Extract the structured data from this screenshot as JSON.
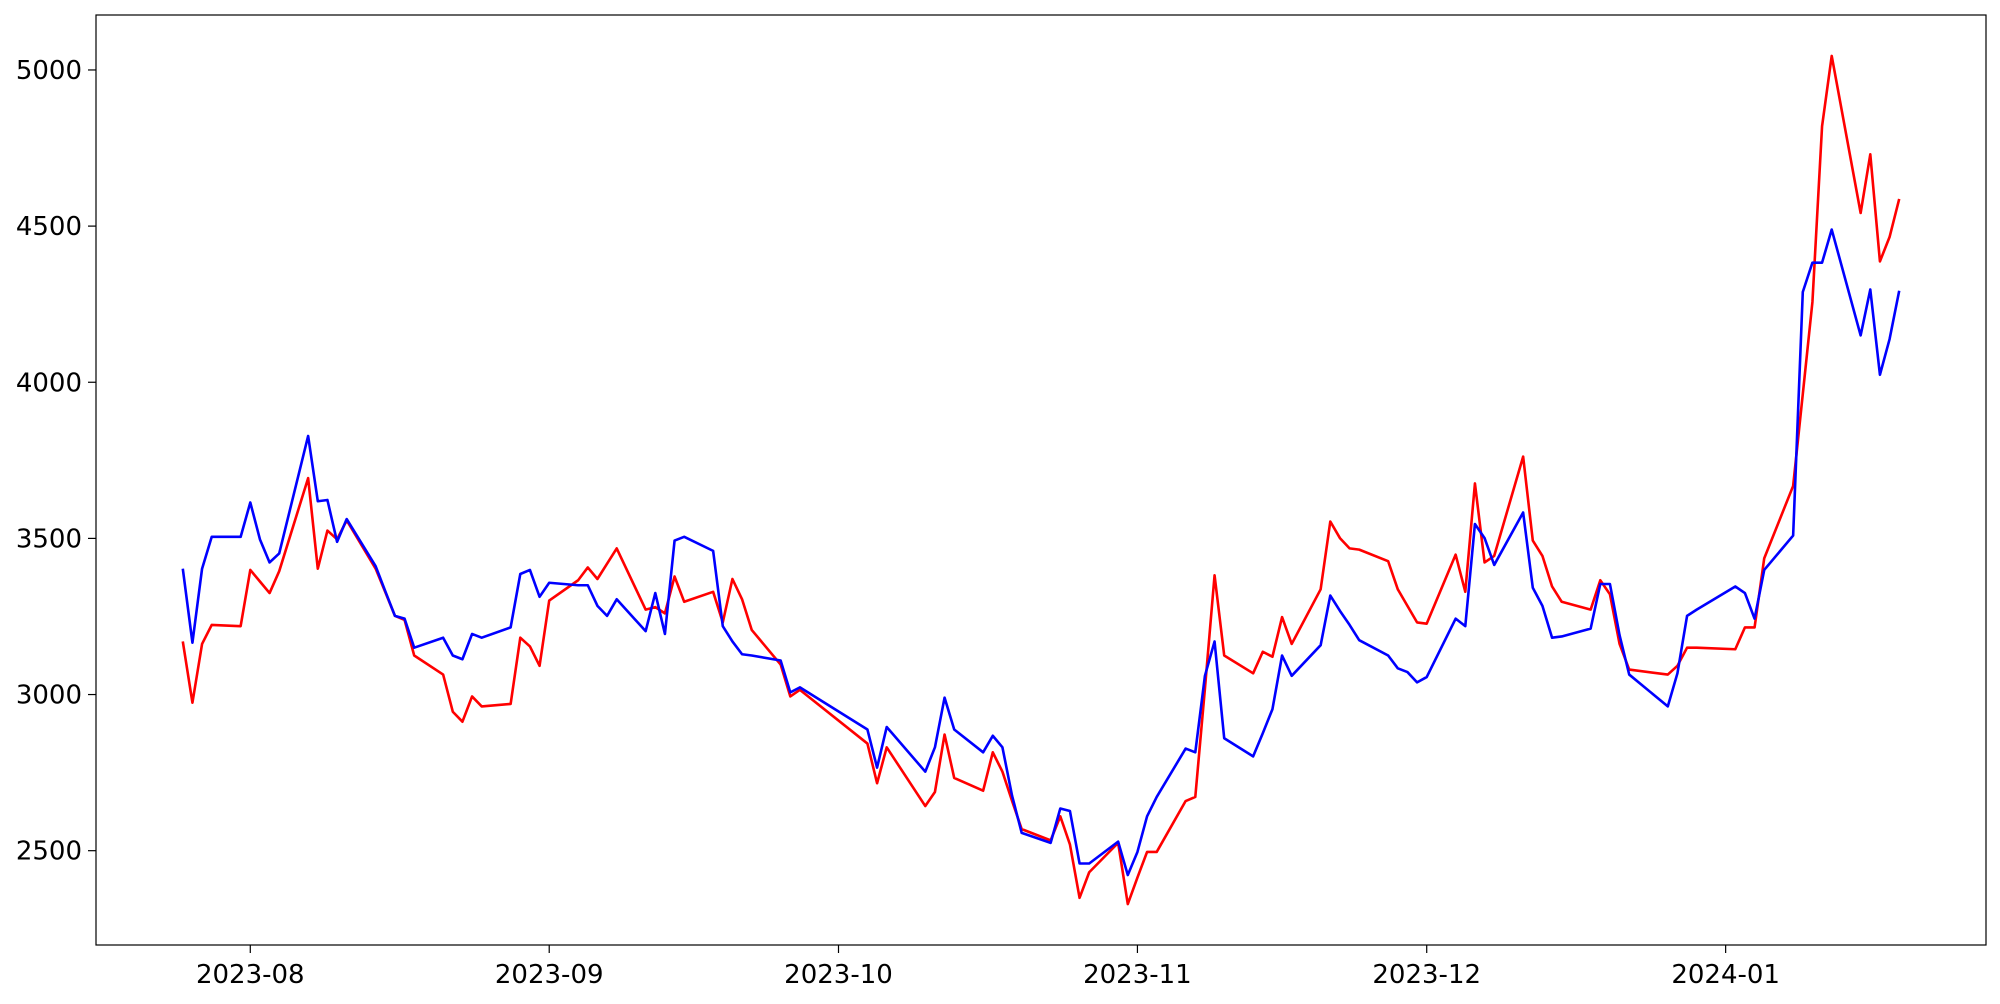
{
  "chart_data": {
    "type": "line",
    "x": [
      "2023-07-25",
      "2023-07-26",
      "2023-07-27",
      "2023-07-28",
      "2023-07-31",
      "2023-08-01",
      "2023-08-02",
      "2023-08-03",
      "2023-08-04",
      "2023-08-07",
      "2023-08-08",
      "2023-08-09",
      "2023-08-10",
      "2023-08-11",
      "2023-08-14",
      "2023-08-15",
      "2023-08-16",
      "2023-08-17",
      "2023-08-18",
      "2023-08-21",
      "2023-08-22",
      "2023-08-23",
      "2023-08-24",
      "2023-08-25",
      "2023-08-28",
      "2023-08-29",
      "2023-08-30",
      "2023-08-31",
      "2023-09-01",
      "2023-09-04",
      "2023-09-05",
      "2023-09-06",
      "2023-09-07",
      "2023-09-08",
      "2023-09-11",
      "2023-09-12",
      "2023-09-13",
      "2023-09-14",
      "2023-09-15",
      "2023-09-18",
      "2023-09-19",
      "2023-09-20",
      "2023-09-21",
      "2023-09-22",
      "2023-09-25",
      "2023-09-26",
      "2023-09-27",
      "2023-10-04",
      "2023-10-05",
      "2023-10-06",
      "2023-10-10",
      "2023-10-11",
      "2023-10-12",
      "2023-10-13",
      "2023-10-16",
      "2023-10-17",
      "2023-10-18",
      "2023-10-19",
      "2023-10-20",
      "2023-10-23",
      "2023-10-24",
      "2023-10-25",
      "2023-10-26",
      "2023-10-27",
      "2023-10-30",
      "2023-10-31",
      "2023-11-01",
      "2023-11-02",
      "2023-11-03",
      "2023-11-06",
      "2023-11-07",
      "2023-11-08",
      "2023-11-09",
      "2023-11-10",
      "2023-11-13",
      "2023-11-14",
      "2023-11-15",
      "2023-11-16",
      "2023-11-17",
      "2023-11-20",
      "2023-11-21",
      "2023-11-22",
      "2023-11-23",
      "2023-11-24",
      "2023-11-27",
      "2023-11-28",
      "2023-11-29",
      "2023-11-30",
      "2023-12-01",
      "2023-12-04",
      "2023-12-05",
      "2023-12-06",
      "2023-12-07",
      "2023-12-08",
      "2023-12-11",
      "2023-12-12",
      "2023-12-13",
      "2023-12-14",
      "2023-12-15",
      "2023-12-18",
      "2023-12-19",
      "2023-12-20",
      "2023-12-21",
      "2023-12-22",
      "2023-12-26",
      "2023-12-27",
      "2023-12-28",
      "2023-12-29",
      "2024-01-02",
      "2024-01-03",
      "2024-01-04",
      "2024-01-05",
      "2024-01-08",
      "2024-01-09",
      "2024-01-10",
      "2024-01-11",
      "2024-01-12",
      "2024-01-15",
      "2024-01-16",
      "2024-01-17",
      "2024-01-18",
      "2024-01-19"
    ],
    "series": [
      {
        "color": "#ff0000",
        "values": [
          3170,
          2974,
          3162,
          3223,
          3219,
          3399,
          3362,
          3325,
          3395,
          3693,
          3403,
          3525,
          3497,
          3558,
          3403,
          3328,
          3252,
          3239,
          3125,
          3064,
          2945,
          2913,
          2994,
          2962,
          2970,
          3182,
          3154,
          3092,
          3301,
          3366,
          3407,
          3370,
          3419,
          3468,
          3272,
          3280,
          3260,
          3378,
          3297,
          3329,
          3231,
          3370,
          3305,
          3207,
          3096,
          2994,
          3015,
          2843,
          2716,
          2831,
          2643,
          2688,
          2872,
          2733,
          2692,
          2815,
          2753,
          2659,
          2569,
          2533,
          2610,
          2520,
          2349,
          2431,
          2525,
          2329,
          2414,
          2496,
          2496,
          2659,
          2672,
          3019,
          3382,
          3125,
          3068,
          3137,
          3121,
          3248,
          3162,
          3337,
          3554,
          3501,
          3468,
          3464,
          3427,
          3337,
          3284,
          3231,
          3227,
          3448,
          3329,
          3676,
          3423,
          3444,
          3762,
          3493,
          3444,
          3346,
          3297,
          3272,
          3366,
          3321,
          3162,
          3080,
          3064,
          3092,
          3150,
          3150,
          3145,
          3215,
          3215,
          3436,
          3668,
          3962,
          4257,
          4820,
          5045,
          4542,
          4730,
          4387,
          4465,
          4587
        ]
      },
      {
        "color": "#0000ff",
        "values": [
          3403,
          3166,
          3403,
          3505,
          3505,
          3615,
          3497,
          3423,
          3452,
          3828,
          3619,
          3623,
          3489,
          3562,
          3411,
          3331,
          3252,
          3243,
          3150,
          3182,
          3125,
          3113,
          3194,
          3182,
          3215,
          3386,
          3399,
          3313,
          3358,
          3350,
          3350,
          3284,
          3252,
          3305,
          3203,
          3325,
          3194,
          3493,
          3505,
          3460,
          3219,
          3170,
          3129,
          3125,
          3109,
          3007,
          3023,
          2888,
          2766,
          2896,
          2753,
          2831,
          2990,
          2888,
          2815,
          2868,
          2831,
          2676,
          2557,
          2525,
          2635,
          2627,
          2459,
          2459,
          2529,
          2422,
          2496,
          2610,
          2672,
          2827,
          2815,
          3060,
          3170,
          2860,
          2802,
          2876,
          2953,
          3125,
          3060,
          3158,
          3317,
          3268,
          3223,
          3174,
          3125,
          3084,
          3072,
          3039,
          3056,
          3243,
          3219,
          3546,
          3501,
          3415,
          3583,
          3342,
          3284,
          3182,
          3186,
          3211,
          3354,
          3354,
          3190,
          3064,
          2962,
          3068,
          3252,
          3272,
          3346,
          3325,
          3243,
          3399,
          3509,
          4289,
          4383,
          4383,
          4489,
          4150,
          4297,
          4024,
          4138,
          4293
        ]
      }
    ],
    "xlim": [
      "2023-07-16",
      "2024-01-28"
    ],
    "xticks": [
      {
        "value": "2023-08-01",
        "label": "2023-08"
      },
      {
        "value": "2023-09-01",
        "label": "2023-09"
      },
      {
        "value": "2023-10-01",
        "label": "2023-10"
      },
      {
        "value": "2023-11-01",
        "label": "2023-11"
      },
      {
        "value": "2023-12-01",
        "label": "2023-12"
      },
      {
        "value": "2024-01-01",
        "label": "2024-01"
      }
    ],
    "ylim": [
      2198,
      5176
    ],
    "yticks": [
      2500,
      3000,
      3500,
      4000,
      4500,
      5000
    ],
    "grid": false
  }
}
